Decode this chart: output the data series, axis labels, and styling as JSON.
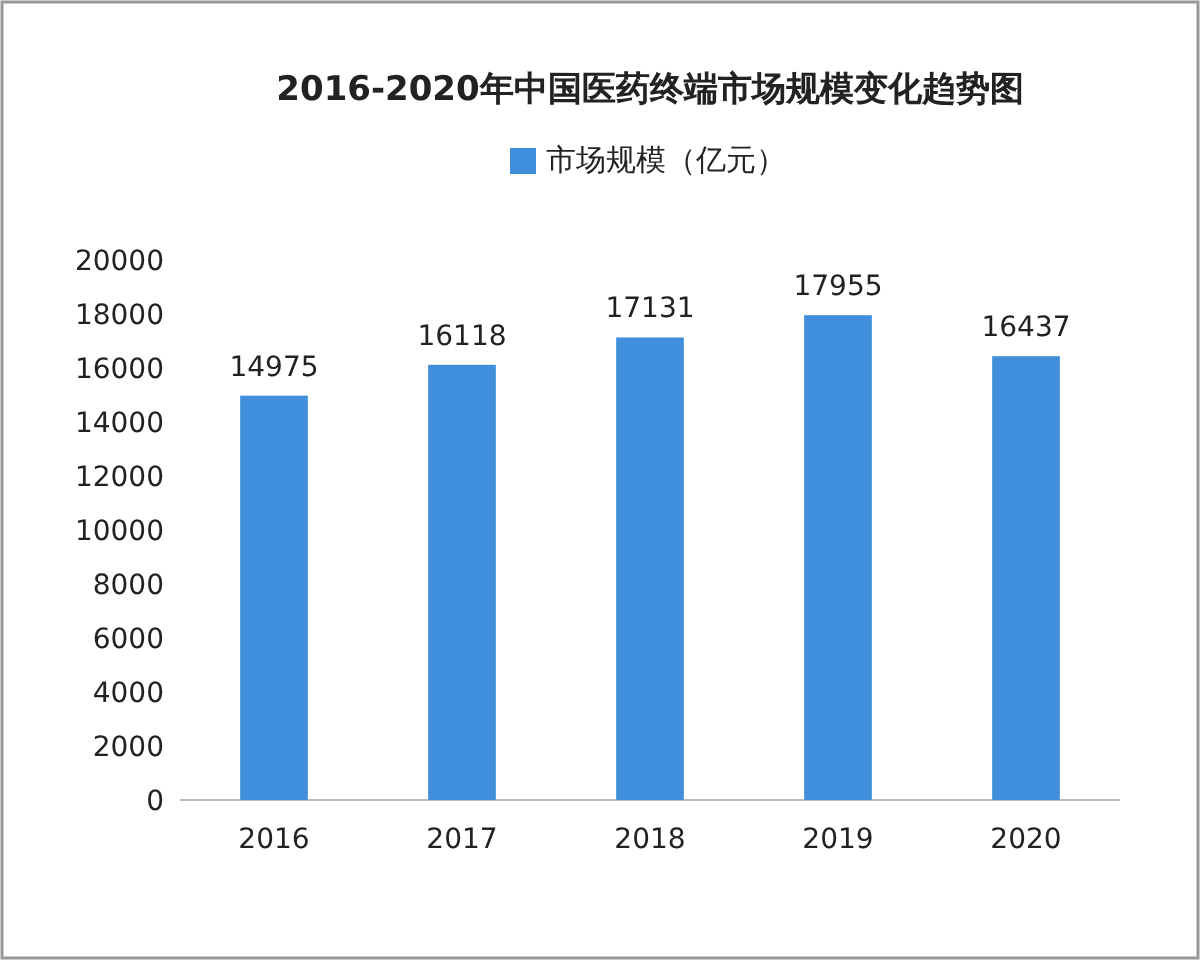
{
  "chart_data": {
    "type": "bar",
    "title": "2016-2020年中国医药终端市场规模变化趋势图",
    "categories": [
      "2016",
      "2017",
      "2018",
      "2019",
      "2020"
    ],
    "series": [
      {
        "name": "市场规模（亿元）",
        "color": "#3f8fdc",
        "values": [
          14975,
          16118,
          17131,
          17955,
          16437
        ]
      }
    ],
    "ylim": [
      0,
      20000
    ],
    "yticks": [
      0,
      2000,
      4000,
      6000,
      8000,
      10000,
      12000,
      14000,
      16000,
      18000,
      20000
    ],
    "data_labels": true,
    "legend": "top"
  }
}
